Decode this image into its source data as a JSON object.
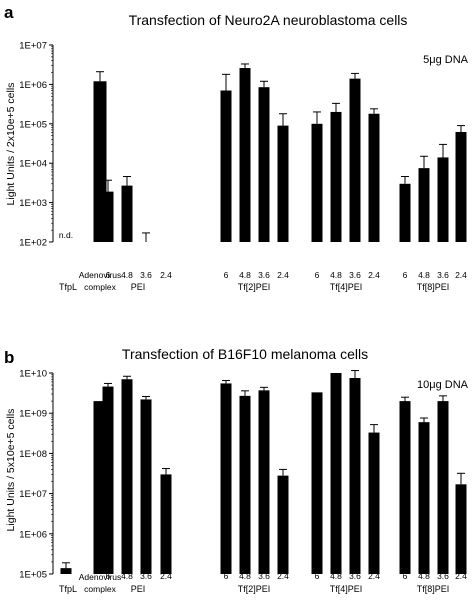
{
  "chart_data": [
    {
      "type": "bar",
      "panel_label": "a",
      "title": "Transfection of Neuro2A neuroblastoma cells",
      "annotation": "5μg DNA",
      "ylabel": "Light Units / 2x10e+5 cells",
      "yscale": "log",
      "ylim": [
        100,
        10000000
      ],
      "yticks": [
        "1E+02",
        "1E+03",
        "1E+04",
        "1E+05",
        "1E+06",
        "1E+07"
      ],
      "groups": [
        {
          "label": "TfpL",
          "bars": [
            {
              "tick": "",
              "value": null,
              "error": null,
              "text": "n.d."
            }
          ]
        },
        {
          "label": "Adenovirus complex",
          "bars": [
            {
              "tick": "",
              "value": 1200000,
              "error": 2100000
            }
          ]
        },
        {
          "label": "PEI",
          "bars": [
            {
              "tick": "6",
              "value": 1900,
              "error": 3700
            },
            {
              "tick": "4.8",
              "value": 2700,
              "error": 4600
            },
            {
              "tick": "3.6",
              "value": null,
              "error": 170
            },
            {
              "tick": "2.4",
              "value": null,
              "error": null
            }
          ]
        },
        {
          "label": "Tf[2]PEI",
          "bars": [
            {
              "tick": "6",
              "value": 700000,
              "error": 1800000
            },
            {
              "tick": "4.8",
              "value": 2600000,
              "error": 3300000
            },
            {
              "tick": "3.6",
              "value": 850000,
              "error": 1200000
            },
            {
              "tick": "2.4",
              "value": 90000,
              "error": 180000
            }
          ]
        },
        {
          "label": "Tf[4]PEI",
          "bars": [
            {
              "tick": "6",
              "value": 100000,
              "error": 200000
            },
            {
              "tick": "4.8",
              "value": 200000,
              "error": 330000
            },
            {
              "tick": "3.6",
              "value": 1400000,
              "error": 1900000
            },
            {
              "tick": "2.4",
              "value": 180000,
              "error": 240000
            }
          ]
        },
        {
          "label": "Tf[8]PEI",
          "bars": [
            {
              "tick": "6",
              "value": 3000,
              "error": 4600
            },
            {
              "tick": "4.8",
              "value": 7500,
              "error": 15000
            },
            {
              "tick": "3.6",
              "value": 14000,
              "error": 30000
            },
            {
              "tick": "2.4",
              "value": 62000,
              "error": 90000
            }
          ]
        }
      ]
    },
    {
      "type": "bar",
      "panel_label": "b",
      "title": "Transfection of B16F10 melanoma cells",
      "annotation": "10μg DNA",
      "ylabel": "Light Units / 5x10e+5 cells",
      "yscale": "log",
      "ylim": [
        100000,
        10000000000
      ],
      "yticks": [
        "1E+05",
        "1E+06",
        "1E+07",
        "1E+08",
        "1E+09",
        "1E+10"
      ],
      "groups": [
        {
          "label": "TfpL",
          "bars": [
            {
              "tick": "",
              "value": 140000,
              "error": 190000
            }
          ]
        },
        {
          "label": "Adenovirus complex",
          "bars": [
            {
              "tick": "",
              "value": 2000000000,
              "error": null
            }
          ]
        },
        {
          "label": "PEI",
          "bars": [
            {
              "tick": "6",
              "value": 4600000000,
              "error": 5500000000
            },
            {
              "tick": "4.8",
              "value": 7000000000,
              "error": 8300000000
            },
            {
              "tick": "3.6",
              "value": 2200000000,
              "error": 2600000000
            },
            {
              "tick": "2.4",
              "value": 30000000,
              "error": 42000000
            }
          ]
        },
        {
          "label": "Tf[2]PEI",
          "bars": [
            {
              "tick": "6",
              "value": 5500000000,
              "error": 6500000000
            },
            {
              "tick": "4.8",
              "value": 2700000000,
              "error": 3600000000
            },
            {
              "tick": "3.6",
              "value": 3700000000,
              "error": 4400000000
            },
            {
              "tick": "2.4",
              "value": 28000000,
              "error": 40000000
            }
          ]
        },
        {
          "label": "Tf[4]PEI",
          "bars": [
            {
              "tick": "6",
              "value": 3300000000,
              "error": null
            },
            {
              "tick": "4.8",
              "value": 10000000000,
              "error": null
            },
            {
              "tick": "3.6",
              "value": 7500000000,
              "error": 11500000000
            },
            {
              "tick": "2.4",
              "value": 330000000,
              "error": 520000000
            }
          ]
        },
        {
          "label": "Tf[8]PEI",
          "bars": [
            {
              "tick": "6",
              "value": 2000000000,
              "error": 2500000000
            },
            {
              "tick": "4.8",
              "value": 600000000,
              "error": 760000000
            },
            {
              "tick": "3.6",
              "value": 2000000000,
              "error": 2700000000
            },
            {
              "tick": "2.4",
              "value": 17000000,
              "error": 32000000
            }
          ]
        }
      ]
    }
  ]
}
